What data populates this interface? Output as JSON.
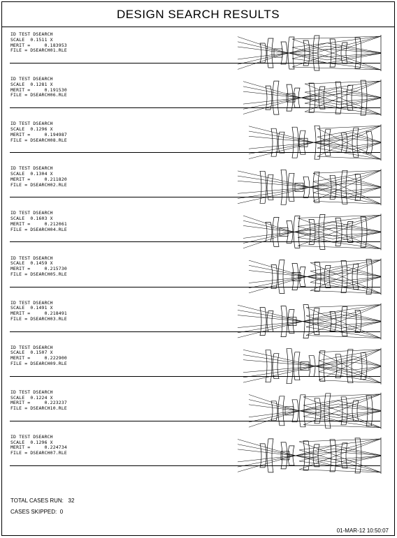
{
  "title": "DESIGN SEARCH RESULTS",
  "cases": [
    {
      "id": "ID TEST DSEARCH",
      "scale": "SCALE  0.1511 X",
      "merit": "MERIT =     0.183953",
      "file": "FILE = DSEARCH01.RLE",
      "variant": 0
    },
    {
      "id": "ID TEST DSEARCH",
      "scale": "SCALE  0.1281 X",
      "merit": "MERIT =     0.191530",
      "file": "FILE = DSEARCH06.RLE",
      "variant": 1
    },
    {
      "id": "ID TEST DSEARCH",
      "scale": "SCALE  0.1296 X",
      "merit": "MERIT =     0.194987",
      "file": "FILE = DSEARCH08.RLE",
      "variant": 2
    },
    {
      "id": "ID TEST DSEARCH",
      "scale": "SCALE  0.1304 X",
      "merit": "MERIT =     0.211820",
      "file": "FILE = DSEARCH02.RLE",
      "variant": 3
    },
    {
      "id": "ID TEST DSEARCH",
      "scale": "SCALE  0.1603 X",
      "merit": "MERIT =     0.212061",
      "file": "FILE = DSEARCH04.RLE",
      "variant": 4
    },
    {
      "id": "ID TEST DSEARCH",
      "scale": "SCALE  0.1459 X",
      "merit": "MERIT =     0.215730",
      "file": "FILE = DSEARCH05.RLE",
      "variant": 5
    },
    {
      "id": "ID TEST DSEARCH",
      "scale": "SCALE  0.1491 X",
      "merit": "MERIT =     0.218491",
      "file": "FILE = DSEARCH03.RLE",
      "variant": 6
    },
    {
      "id": "ID TEST DSEARCH",
      "scale": "SCALE  0.1507 X",
      "merit": "MERIT =     0.222900",
      "file": "FILE = DSEARCH09.RLE",
      "variant": 7
    },
    {
      "id": "ID TEST DSEARCH",
      "scale": "SCALE  0.1224 X",
      "merit": "MERIT =     0.223237",
      "file": "FILE = DSEARCH10.RLE",
      "variant": 8
    },
    {
      "id": "ID TEST DSEARCH",
      "scale": "SCALE  0.1296 X",
      "merit": "MERIT =     0.224734",
      "file": "FILE = DSEARCH07.RLE",
      "variant": 9
    }
  ],
  "summary": {
    "total_label": "TOTAL CASES RUN:",
    "total_value": "32",
    "skipped_label": "CASES SKIPPED:",
    "skipped_value": "0"
  },
  "datestamp": "01-MAR-12  10:50:07"
}
